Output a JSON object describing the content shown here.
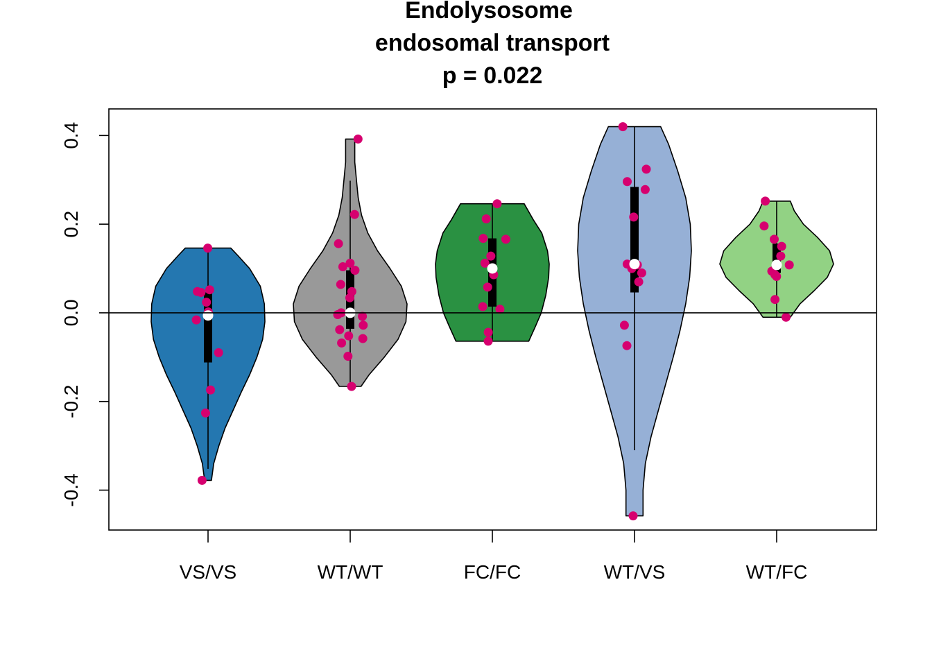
{
  "chart_data": {
    "type": "violin",
    "title": [
      "Endolysosome",
      "endosomal transport",
      "p = 0.022"
    ],
    "xlabel": "",
    "ylabel": "",
    "categories": [
      "VS/VS",
      "WT/WT",
      "FC/FC",
      "WT/VS",
      "WT/FC"
    ],
    "ylim": [
      -0.49,
      0.46
    ],
    "y_ticks": [
      -0.4,
      -0.2,
      0.0,
      0.2,
      0.4
    ],
    "y_tick_labels": [
      "-0.4",
      "-0.2",
      "0.0",
      "0.2",
      "0.4"
    ],
    "reference_line": 0,
    "grid": false,
    "point_color": "#d6006f",
    "median_color": "#ffffff",
    "groups": [
      {
        "name": "VS/VS",
        "color": "#2477b0",
        "min": -0.378,
        "max": 0.146,
        "median": -0.006,
        "q1": -0.112,
        "q3": 0.046,
        "whisker_low": -0.352,
        "whisker_high": 0.146,
        "density": [
          [
            -0.378,
            0.06
          ],
          [
            -0.34,
            0.1
          ],
          [
            -0.3,
            0.19
          ],
          [
            -0.26,
            0.3
          ],
          [
            -0.22,
            0.44
          ],
          [
            -0.18,
            0.58
          ],
          [
            -0.14,
            0.73
          ],
          [
            -0.1,
            0.86
          ],
          [
            -0.06,
            0.96
          ],
          [
            -0.02,
            1.0
          ],
          [
            0.02,
            0.99
          ],
          [
            0.06,
            0.92
          ],
          [
            0.1,
            0.73
          ],
          [
            0.13,
            0.52
          ],
          [
            0.146,
            0.4
          ]
        ],
        "points": [
          0.146,
          0.052,
          0.048,
          0.046,
          0.024,
          0.002,
          -0.016,
          -0.09,
          -0.174,
          -0.226,
          -0.378
        ]
      },
      {
        "name": "WT/WT",
        "color": "#999999",
        "min": -0.166,
        "max": 0.392,
        "median": 0.0,
        "q1": -0.036,
        "q3": 0.096,
        "whisker_low": -0.166,
        "whisker_high": 0.298,
        "density": [
          [
            -0.166,
            0.19
          ],
          [
            -0.14,
            0.33
          ],
          [
            -0.1,
            0.6
          ],
          [
            -0.06,
            0.84
          ],
          [
            -0.02,
            0.98
          ],
          [
            0.02,
            1.0
          ],
          [
            0.06,
            0.9
          ],
          [
            0.1,
            0.7
          ],
          [
            0.14,
            0.48
          ],
          [
            0.18,
            0.31
          ],
          [
            0.22,
            0.2
          ],
          [
            0.26,
            0.14
          ],
          [
            0.3,
            0.11
          ],
          [
            0.34,
            0.08
          ],
          [
            0.392,
            0.08
          ]
        ],
        "points": [
          0.392,
          0.222,
          0.156,
          0.112,
          0.104,
          0.096,
          0.064,
          0.048,
          0.034,
          0.0,
          -0.004,
          -0.008,
          -0.028,
          -0.038,
          -0.052,
          -0.058,
          -0.068,
          -0.098,
          -0.166
        ]
      },
      {
        "name": "FC/FC",
        "color": "#2a9142",
        "min": -0.064,
        "max": 0.246,
        "median": 0.1,
        "q1": 0.014,
        "q3": 0.168,
        "whisker_low": -0.064,
        "whisker_high": 0.246,
        "density": [
          [
            -0.064,
            0.64
          ],
          [
            -0.03,
            0.76
          ],
          [
            0.0,
            0.86
          ],
          [
            0.04,
            0.94
          ],
          [
            0.08,
            0.99
          ],
          [
            0.11,
            1.0
          ],
          [
            0.14,
            0.97
          ],
          [
            0.18,
            0.87
          ],
          [
            0.21,
            0.72
          ],
          [
            0.246,
            0.56
          ]
        ],
        "points": [
          0.246,
          0.212,
          0.168,
          0.166,
          0.128,
          0.112,
          0.086,
          0.058,
          0.014,
          0.008,
          -0.044,
          -0.064
        ]
      },
      {
        "name": "WT/VS",
        "color": "#96b0d6",
        "min": -0.458,
        "max": 0.42,
        "median": 0.11,
        "q1": 0.046,
        "q3": 0.284,
        "whisker_low": -0.31,
        "whisker_high": 0.42,
        "density": [
          [
            -0.458,
            0.15
          ],
          [
            -0.4,
            0.15
          ],
          [
            -0.34,
            0.19
          ],
          [
            -0.28,
            0.29
          ],
          [
            -0.22,
            0.42
          ],
          [
            -0.16,
            0.55
          ],
          [
            -0.1,
            0.68
          ],
          [
            -0.04,
            0.8
          ],
          [
            0.02,
            0.9
          ],
          [
            0.08,
            0.97
          ],
          [
            0.14,
            1.0
          ],
          [
            0.2,
            0.98
          ],
          [
            0.26,
            0.9
          ],
          [
            0.32,
            0.76
          ],
          [
            0.38,
            0.6
          ],
          [
            0.42,
            0.46
          ]
        ],
        "points": [
          0.42,
          0.324,
          0.296,
          0.278,
          0.216,
          0.11,
          0.108,
          0.1,
          0.09,
          0.07,
          -0.028,
          -0.074,
          -0.458
        ]
      },
      {
        "name": "WT/FC",
        "color": "#92d284",
        "min": -0.01,
        "max": 0.252,
        "median": 0.108,
        "q1": 0.09,
        "q3": 0.156,
        "whisker_low": -0.01,
        "whisker_high": 0.252,
        "density": [
          [
            -0.01,
            0.24
          ],
          [
            0.02,
            0.41
          ],
          [
            0.05,
            0.66
          ],
          [
            0.08,
            0.89
          ],
          [
            0.11,
            1.0
          ],
          [
            0.14,
            0.93
          ],
          [
            0.17,
            0.72
          ],
          [
            0.2,
            0.47
          ],
          [
            0.23,
            0.31
          ],
          [
            0.252,
            0.24
          ]
        ],
        "points": [
          0.252,
          0.196,
          0.166,
          0.15,
          0.128,
          0.108,
          0.094,
          0.086,
          0.082,
          0.03,
          -0.01
        ]
      }
    ]
  }
}
